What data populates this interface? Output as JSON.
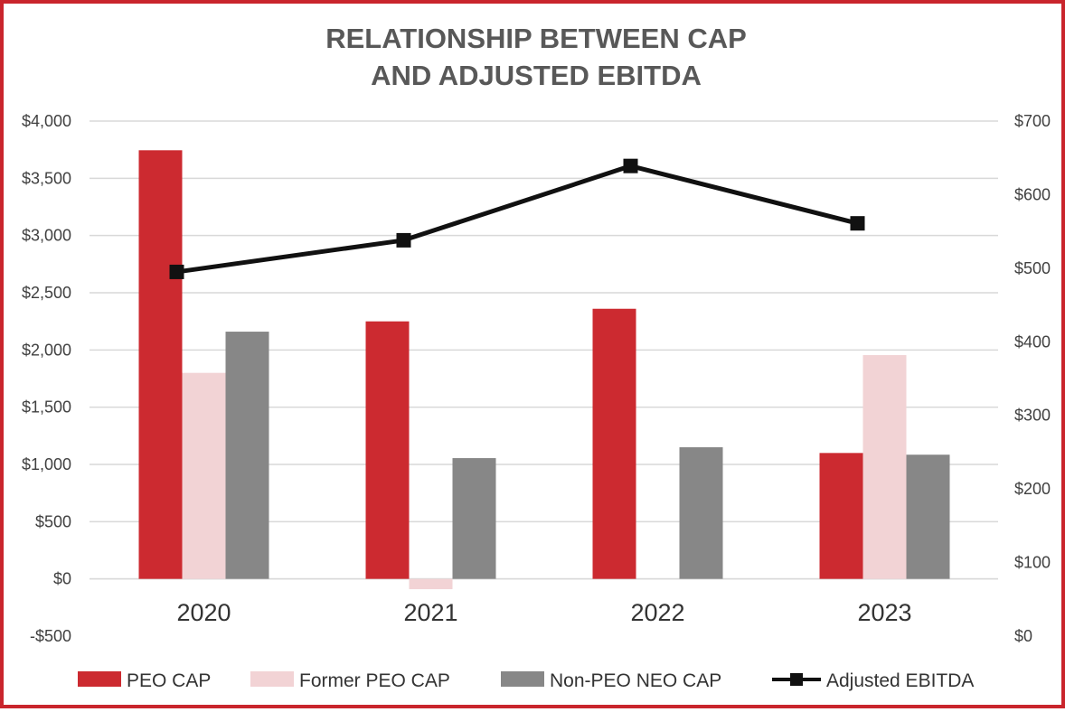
{
  "chart_data": {
    "type": "bar",
    "title_lines": [
      "RELATIONSHIP BETWEEN CAP",
      "AND ADJUSTED EBITDA"
    ],
    "categories": [
      "2020",
      "2021",
      "2022",
      "2023"
    ],
    "series": [
      {
        "name": "PEO CAP",
        "kind": "bar",
        "axis": "left",
        "color": "#cc2a30",
        "values": [
          3745,
          2250,
          2360,
          1100
        ]
      },
      {
        "name": "Former PEO CAP",
        "kind": "bar",
        "axis": "left",
        "color": "#f2d3d5",
        "values": [
          1800,
          -90,
          null,
          1955
        ]
      },
      {
        "name": "Non-PEO NEO CAP",
        "kind": "bar",
        "axis": "left",
        "color": "#878787",
        "values": [
          2160,
          1055,
          1150,
          1085
        ]
      },
      {
        "name": "Adjusted EBITDA",
        "kind": "line",
        "axis": "right",
        "color": "#111111",
        "values": [
          495,
          538,
          639,
          561
        ]
      }
    ],
    "y_left": {
      "ylim": [
        -500,
        4000
      ],
      "ticks": [
        -500,
        0,
        500,
        1000,
        1500,
        2000,
        2500,
        3000,
        3500,
        4000
      ],
      "tick_labels": [
        "-$500",
        "$0",
        "$500",
        "$1,000",
        "$1,500",
        "$2,000",
        "$2,500",
        "$3,000",
        "$3,500",
        "$4,000"
      ]
    },
    "y_right": {
      "ylim": [
        0,
        700
      ],
      "ticks": [
        0,
        100,
        200,
        300,
        400,
        500,
        600,
        700
      ],
      "tick_labels": [
        "$0",
        "$100",
        "$200",
        "$300",
        "$400",
        "$500",
        "$600",
        "$700"
      ]
    },
    "grid": true,
    "legend_position": "bottom"
  },
  "colors": {
    "frame_border": "#c9252c",
    "grid": "#d9d9d9",
    "title": "#585858"
  }
}
